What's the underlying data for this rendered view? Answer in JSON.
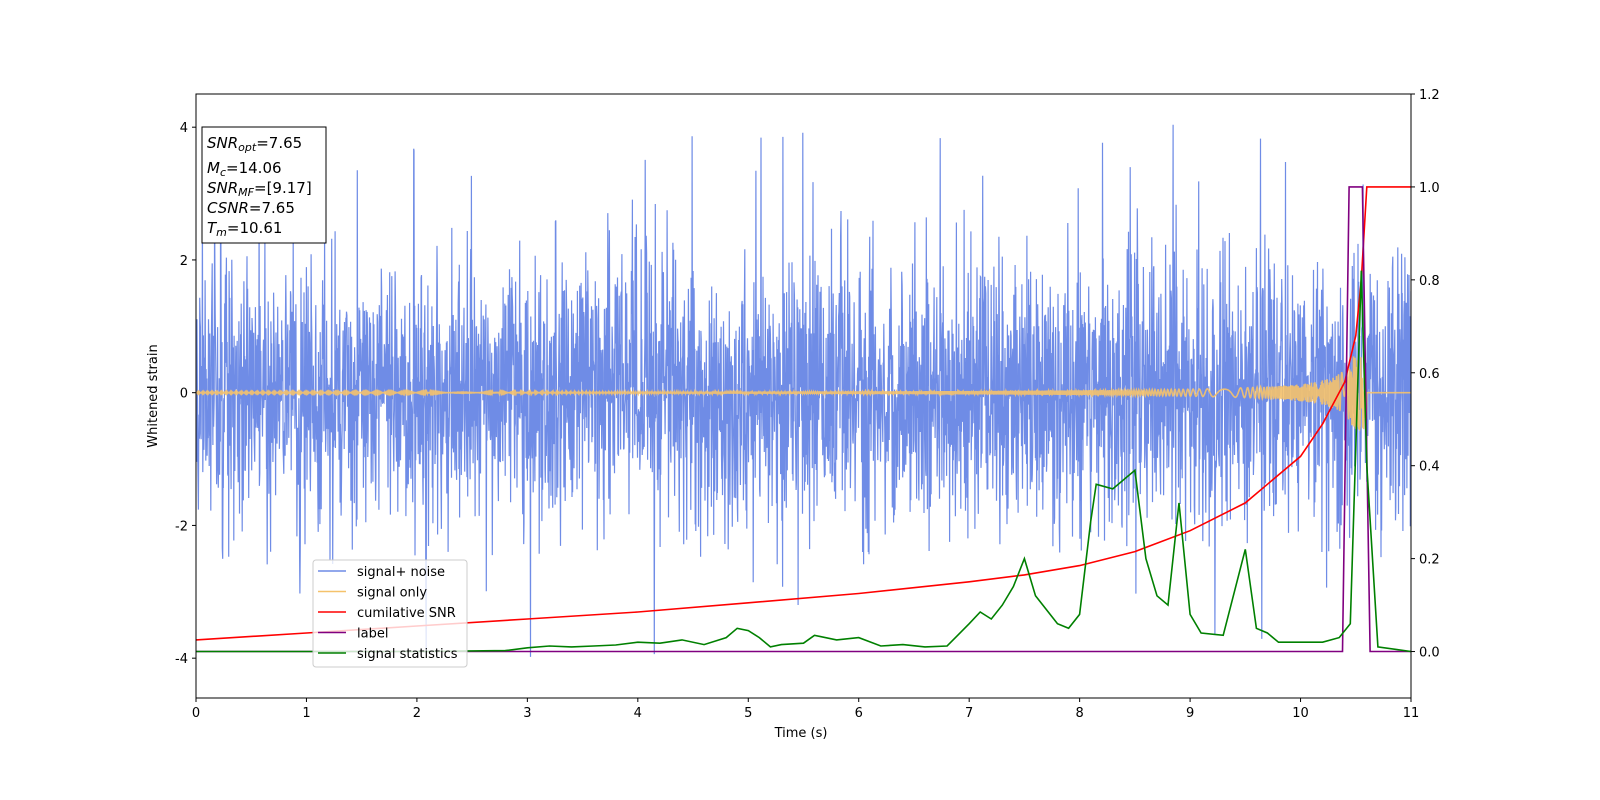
{
  "chart_data": {
    "type": "line",
    "title": "",
    "xlabel": "Time (s)",
    "ylabel_left": "Whitened strain",
    "ylabel_right": "",
    "xlim": [
      0,
      11
    ],
    "ylim_left": [
      -4.6,
      4.5
    ],
    "ylim_right": [
      -0.1,
      1.2
    ],
    "xticks": [
      0,
      1,
      2,
      3,
      4,
      5,
      6,
      7,
      8,
      9,
      10,
      11
    ],
    "yticks_left": [
      -4,
      -2,
      0,
      2,
      4
    ],
    "yticks_right": [
      "0.0",
      "0.2",
      "0.4",
      "0.6",
      "0.8",
      "1.0",
      "1.2"
    ],
    "grid": false,
    "legend_position": "lower-left",
    "series": [
      {
        "name": "signal+ noise",
        "axis": "left",
        "color": "#6f8ce6",
        "style": "noise",
        "typical_range": [
          -2.6,
          2.6
        ],
        "max": 4.05
      },
      {
        "name": "signal only",
        "axis": "left",
        "color": "#f5c26b",
        "style": "chirp",
        "max_amplitude": 0.55,
        "peak_time": 10.6
      },
      {
        "name": "cumilative SNR",
        "axis": "right",
        "color": "#ff0000",
        "x": [
          0,
          1,
          2,
          3,
          4,
          5,
          6,
          7,
          7.5,
          8,
          8.5,
          9,
          9.5,
          10,
          10.2,
          10.4,
          10.5,
          10.55,
          10.6,
          11
        ],
        "y": [
          0.025,
          0.04,
          0.055,
          0.07,
          0.085,
          0.105,
          0.125,
          0.15,
          0.165,
          0.185,
          0.215,
          0.26,
          0.32,
          0.42,
          0.49,
          0.58,
          0.68,
          0.8,
          1.0,
          1.0
        ]
      },
      {
        "name": "label",
        "axis": "right",
        "color": "#800080",
        "x": [
          0,
          10.38,
          10.44,
          10.56,
          10.63,
          11
        ],
        "y": [
          0,
          0,
          1,
          1,
          0,
          0
        ]
      },
      {
        "name": "signal statistics",
        "axis": "right",
        "color": "#008000",
        "x": [
          0,
          1,
          2,
          2.8,
          3.0,
          3.2,
          3.4,
          3.6,
          3.8,
          4.0,
          4.2,
          4.4,
          4.6,
          4.8,
          4.9,
          5.0,
          5.1,
          5.2,
          5.3,
          5.5,
          5.6,
          5.8,
          6.0,
          6.2,
          6.4,
          6.6,
          6.8,
          7.0,
          7.1,
          7.2,
          7.3,
          7.4,
          7.5,
          7.6,
          7.7,
          7.8,
          7.9,
          8.0,
          8.1,
          8.15,
          8.3,
          8.5,
          8.6,
          8.7,
          8.8,
          8.9,
          9.0,
          9.1,
          9.3,
          9.5,
          9.6,
          9.7,
          9.8,
          10.0,
          10.2,
          10.35,
          10.45,
          10.55,
          10.6,
          10.7,
          11
        ],
        "y": [
          0,
          0,
          0,
          0.002,
          0.008,
          0.012,
          0.01,
          0.012,
          0.014,
          0.02,
          0.018,
          0.025,
          0.015,
          0.03,
          0.05,
          0.045,
          0.03,
          0.01,
          0.015,
          0.018,
          0.035,
          0.025,
          0.03,
          0.012,
          0.015,
          0.01,
          0.012,
          0.06,
          0.085,
          0.07,
          0.1,
          0.14,
          0.2,
          0.12,
          0.09,
          0.06,
          0.05,
          0.08,
          0.28,
          0.36,
          0.35,
          0.39,
          0.2,
          0.12,
          0.1,
          0.32,
          0.08,
          0.04,
          0.035,
          0.22,
          0.05,
          0.04,
          0.02,
          0.02,
          0.02,
          0.03,
          0.06,
          0.82,
          0.4,
          0.01,
          0.0
        ]
      }
    ],
    "annotation": [
      {
        "base": "SNR",
        "sub": "opt",
        "rest": "=7.65"
      },
      {
        "base": "M",
        "sub": "c",
        "rest": "=14.06"
      },
      {
        "base": "SNR",
        "sub": "MF",
        "rest": "=[9.17]"
      },
      {
        "base": "CSNR",
        "sub": "",
        "rest": "=7.65"
      },
      {
        "base": "T",
        "sub": "m",
        "rest": "=10.61"
      }
    ]
  }
}
